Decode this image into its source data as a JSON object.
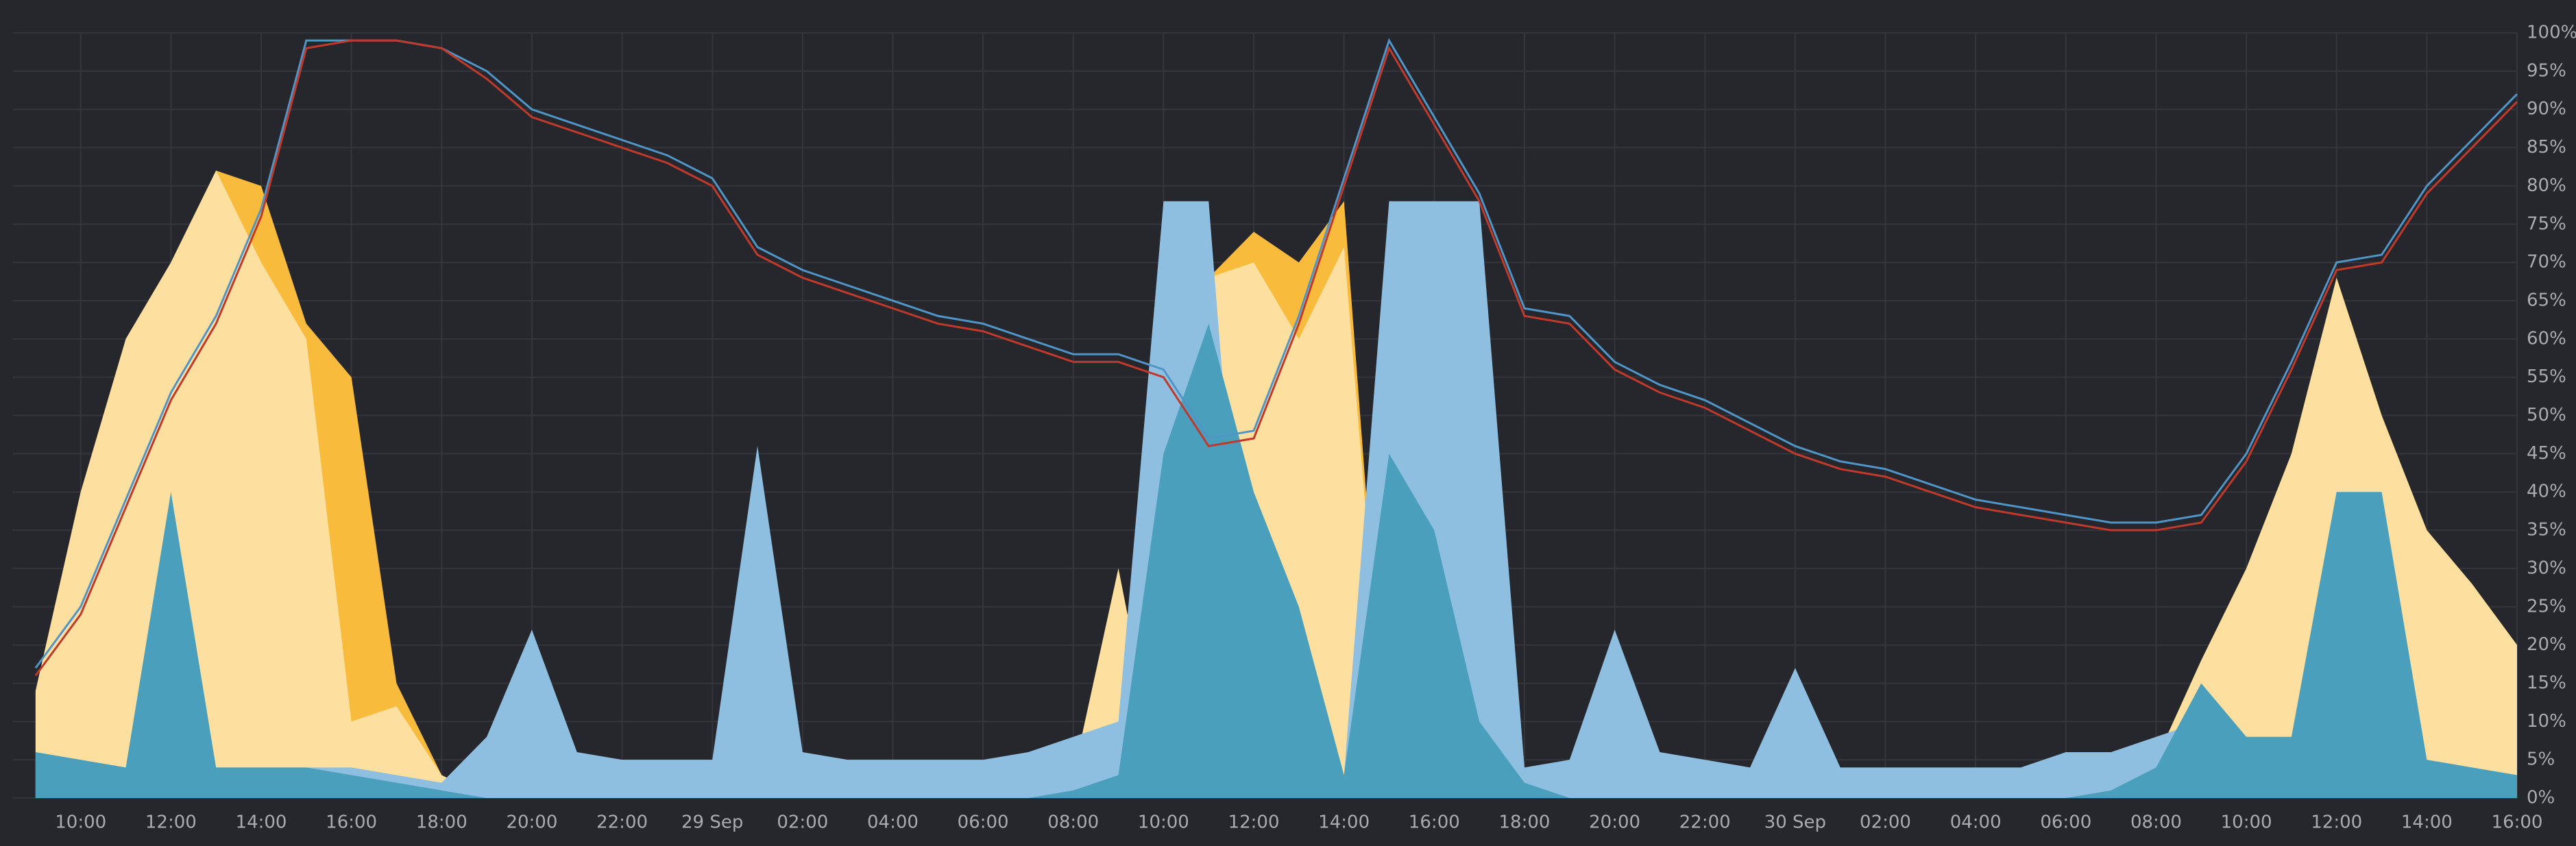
{
  "chart_data": {
    "type": "area",
    "categories": [
      null,
      "10:00",
      null,
      "12:00",
      null,
      "14:00",
      null,
      "16:00",
      null,
      "18:00",
      null,
      "20:00",
      null,
      "22:00",
      null,
      "29 Sep",
      null,
      "02:00",
      null,
      "04:00",
      null,
      "06:00",
      null,
      "08:00",
      null,
      "10:00",
      null,
      "12:00",
      null,
      "14:00",
      null,
      "16:00",
      null,
      "18:00",
      null,
      "20:00",
      null,
      "22:00",
      null,
      "30 Sep",
      null,
      "02:00",
      null,
      "04:00",
      null,
      "06:00",
      null,
      "08:00",
      null,
      "10:00",
      null,
      "12:00",
      null,
      "14:00",
      null,
      "16:00"
    ],
    "series": [
      {
        "kind": "area",
        "color": "#f8bb3b",
        "values": [
          14,
          40,
          60,
          70,
          82,
          80,
          62,
          55,
          15,
          3,
          0,
          0,
          0,
          0,
          0,
          0,
          0,
          0,
          0,
          0,
          0,
          0,
          0,
          3,
          30,
          0,
          68,
          74,
          70,
          78,
          0,
          0,
          0,
          0,
          0,
          0,
          0,
          0,
          0,
          0,
          0,
          0,
          0,
          0,
          0,
          0,
          0,
          5,
          18,
          30,
          45,
          68,
          50,
          35,
          28,
          20
        ]
      },
      {
        "kind": "area",
        "color": "#fde0a0",
        "values": [
          14,
          40,
          60,
          70,
          82,
          70,
          60,
          10,
          12,
          3,
          0,
          0,
          0,
          0,
          0,
          0,
          0,
          0,
          0,
          0,
          0,
          0,
          0,
          3,
          30,
          0,
          68,
          70,
          60,
          72,
          0,
          0,
          0,
          0,
          0,
          0,
          0,
          0,
          0,
          0,
          0,
          0,
          0,
          0,
          0,
          0,
          0,
          5,
          18,
          30,
          45,
          68,
          50,
          35,
          28,
          20
        ]
      },
      {
        "kind": "area",
        "color": "#8fbfe0",
        "values": [
          5,
          4,
          4,
          4,
          3,
          3,
          4,
          4,
          3,
          2,
          8,
          22,
          6,
          5,
          5,
          5,
          46,
          6,
          5,
          5,
          5,
          5,
          6,
          8,
          10,
          78,
          78,
          3,
          3,
          3,
          78,
          78,
          78,
          4,
          5,
          22,
          6,
          5,
          4,
          17,
          4,
          4,
          4,
          4,
          4,
          6,
          6,
          8,
          10,
          6,
          5,
          5,
          5,
          5,
          4,
          3
        ]
      },
      {
        "kind": "area",
        "color": "#4a9fbd",
        "values": [
          6,
          5,
          4,
          40,
          4,
          4,
          4,
          3,
          2,
          1,
          0,
          0,
          0,
          0,
          0,
          0,
          0,
          0,
          0,
          0,
          0,
          0,
          0,
          1,
          3,
          45,
          62,
          40,
          25,
          3,
          45,
          35,
          10,
          2,
          0,
          0,
          0,
          0,
          0,
          0,
          0,
          0,
          0,
          0,
          0,
          0,
          1,
          4,
          15,
          8,
          8,
          40,
          40,
          5,
          4,
          3
        ]
      },
      {
        "kind": "line",
        "color": "#4f95c7",
        "values": [
          17,
          25,
          39,
          53,
          63,
          77,
          99,
          99,
          99,
          98,
          95,
          90,
          88,
          86,
          84,
          81,
          72,
          69,
          67,
          65,
          63,
          62,
          60,
          58,
          58,
          56,
          47,
          48,
          63,
          81,
          99,
          89,
          79,
          64,
          63,
          57,
          54,
          52,
          49,
          46,
          44,
          43,
          41,
          39,
          38,
          37,
          36,
          36,
          37,
          45,
          57,
          70,
          71,
          80,
          86,
          92
        ]
      },
      {
        "kind": "line",
        "color": "#c0392b",
        "values": [
          16,
          24,
          38,
          52,
          62,
          76,
          98,
          99,
          99,
          98,
          94,
          89,
          87,
          85,
          83,
          80,
          71,
          68,
          66,
          64,
          62,
          61,
          59,
          57,
          57,
          55,
          46,
          47,
          62,
          80,
          98,
          88,
          78,
          63,
          62,
          56,
          53,
          51,
          48,
          45,
          43,
          42,
          40,
          38,
          37,
          36,
          35,
          35,
          36,
          44,
          56,
          69,
          70,
          79,
          85,
          91
        ]
      }
    ],
    "y2lim": [
      0,
      100
    ],
    "y2ticks": [
      {
        "value": 0,
        "label": "0%"
      },
      {
        "value": 5,
        "label": "5%"
      },
      {
        "value": 10,
        "label": "10%"
      },
      {
        "value": 15,
        "label": "15%"
      },
      {
        "value": 20,
        "label": "20%"
      },
      {
        "value": 25,
        "label": "25%"
      },
      {
        "value": 30,
        "label": "30%"
      },
      {
        "value": 35,
        "label": "35%"
      },
      {
        "value": 40,
        "label": "40%"
      },
      {
        "value": 45,
        "label": "45%"
      },
      {
        "value": 50,
        "label": "50%"
      },
      {
        "value": 55,
        "label": "55%"
      },
      {
        "value": 60,
        "label": "60%"
      },
      {
        "value": 65,
        "label": "65%"
      },
      {
        "value": 70,
        "label": "70%"
      },
      {
        "value": 75,
        "label": "75%"
      },
      {
        "value": 80,
        "label": "80%"
      },
      {
        "value": 85,
        "label": "85%"
      },
      {
        "value": 90,
        "label": "90%"
      },
      {
        "value": 95,
        "label": "95%"
      },
      {
        "value": 100,
        "label": "100%"
      }
    ],
    "grid": true
  }
}
